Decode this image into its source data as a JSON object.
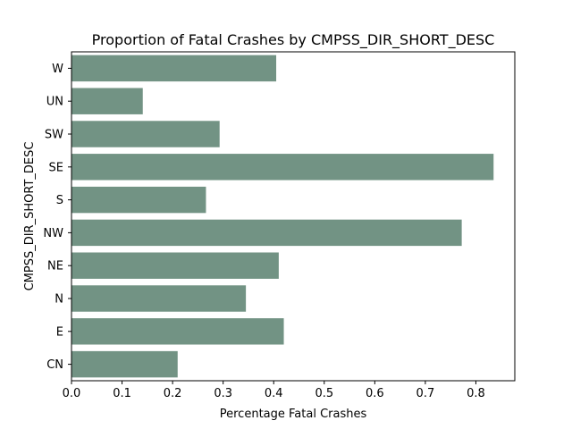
{
  "chart_data": {
    "type": "bar",
    "orientation": "horizontal",
    "title": "Proportion of Fatal Crashes by CMPSS_DIR_SHORT_DESC",
    "xlabel": "Percentage Fatal Crashes",
    "ylabel": "CMPSS_DIR_SHORT_DESC",
    "categories": [
      "CN",
      "E",
      "N",
      "NE",
      "NW",
      "S",
      "SE",
      "SW",
      "UN",
      "W"
    ],
    "values": [
      0.21,
      0.42,
      0.345,
      0.41,
      0.772,
      0.266,
      0.835,
      0.293,
      0.141,
      0.405
    ],
    "xlim": [
      0,
      0.877
    ],
    "xticks": [
      "0.0",
      "0.1",
      "0.2",
      "0.3",
      "0.4",
      "0.5",
      "0.6",
      "0.7",
      "0.8"
    ],
    "bar_color": "#729384",
    "grid": false,
    "legend": "none"
  }
}
